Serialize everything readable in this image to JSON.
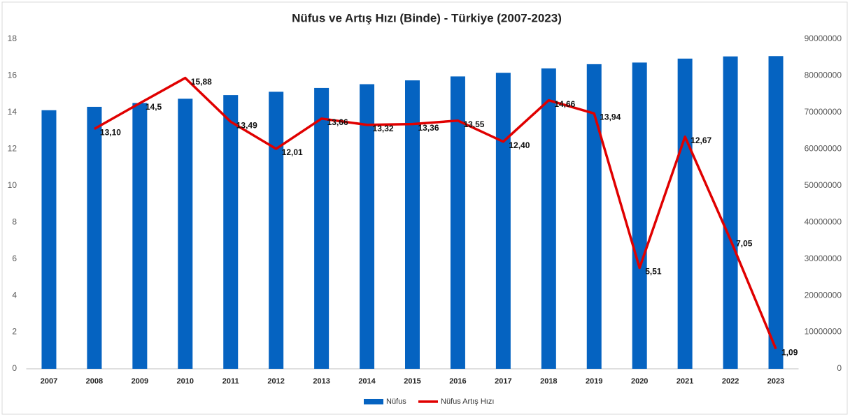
{
  "chart_data": {
    "type": "bar",
    "title": "Nüfus ve Artış Hızı (Binde) - Türkiye (2007-2023)",
    "categories": [
      "2007",
      "2008",
      "2009",
      "2010",
      "2011",
      "2012",
      "2013",
      "2014",
      "2015",
      "2016",
      "2017",
      "2018",
      "2019",
      "2020",
      "2021",
      "2022",
      "2023"
    ],
    "series": [
      {
        "name": "Nüfus",
        "type": "bar",
        "axis": "y2",
        "color": "#0563c1",
        "values": [
          70586256,
          71517100,
          72561312,
          73722988,
          74724269,
          75627384,
          76667864,
          77695904,
          78741053,
          79814871,
          80810525,
          82003882,
          83154997,
          83614362,
          84680273,
          85279553,
          85372377
        ]
      },
      {
        "name": "Nüfus Artış Hızı",
        "type": "line",
        "color": "#e00000",
        "values": [
          null,
          13.1,
          14.5,
          15.88,
          13.49,
          12.01,
          13.66,
          13.32,
          13.36,
          13.55,
          12.4,
          14.66,
          13.94,
          5.51,
          12.67,
          7.05,
          1.09
        ],
        "value_labels": [
          null,
          "13,10",
          "14,5",
          "15,88",
          "13,49",
          "12,01",
          "13,66",
          "13,32",
          "13,36",
          "13,55",
          "12,40",
          "14,66",
          "13,94",
          "5,51",
          "12,67",
          "7,05",
          "1,09"
        ]
      }
    ],
    "ylim": [
      0,
      18
    ],
    "yticks": [
      0,
      2,
      4,
      6,
      8,
      10,
      12,
      14,
      16,
      18
    ],
    "y2lim": [
      0,
      90000000
    ],
    "y2ticks": [
      0,
      10000000,
      20000000,
      30000000,
      40000000,
      50000000,
      60000000,
      70000000,
      80000000,
      90000000
    ],
    "legend": "bottom"
  }
}
